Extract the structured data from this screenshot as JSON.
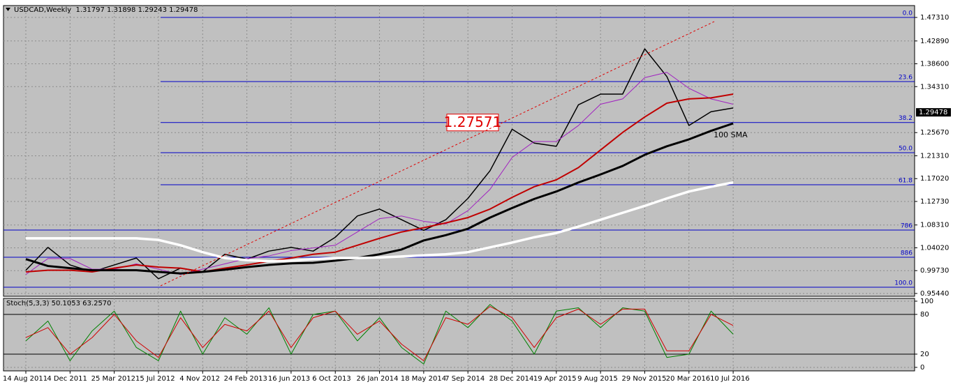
{
  "chart_data": [
    {
      "type": "line",
      "title": "USDCAD,Weekly  1.31797 1.31898 1.29243 1.29478",
      "ylim": [
        0.9491,
        1.4954
      ],
      "yticks": [
        {
          "value": 1.4731,
          "label": "1.47310"
        },
        {
          "value": 1.4289,
          "label": "1.42890"
        },
        {
          "value": 1.386,
          "label": "1.38600"
        },
        {
          "value": 1.3431,
          "label": "1.34310"
        },
        {
          "value": 1.2567,
          "label": "1.25670"
        },
        {
          "value": 1.2131,
          "label": "1.21310"
        },
        {
          "value": 1.1702,
          "label": "1.17020"
        },
        {
          "value": 1.1273,
          "label": "1.12730"
        },
        {
          "value": 1.0831,
          "label": "1.08310"
        },
        {
          "value": 1.0402,
          "label": "1.04020"
        },
        {
          "value": 0.9973,
          "label": "0.99730"
        },
        {
          "value": 0.9544,
          "label": "0.95440"
        }
      ],
      "grid": true,
      "last_price": 1.29478,
      "series": [
        {
          "color": "#000000",
          "width": 1.5,
          "values": [
            0.998,
            1.041,
            1.008,
            0.995,
            1.008,
            1.021,
            0.982,
            1.002,
            0.995,
            1.028,
            1.019,
            1.034,
            1.041,
            1.034,
            1.06,
            1.1,
            1.113,
            1.093,
            1.073,
            1.093,
            1.133,
            1.185,
            1.263,
            1.237,
            1.231,
            1.309,
            1.329,
            1.329,
            1.414,
            1.362,
            1.27,
            1.296,
            1.303
          ]
        },
        {
          "color": "#a020c0",
          "width": 1,
          "values": [
            0.99,
            1.02,
            1.02,
            1.0,
            1.0,
            1.01,
            1.0,
            0.99,
            1.0,
            1.01,
            1.02,
            1.025,
            1.035,
            1.04,
            1.045,
            1.07,
            1.095,
            1.1,
            1.09,
            1.085,
            1.11,
            1.15,
            1.21,
            1.24,
            1.24,
            1.27,
            1.31,
            1.32,
            1.36,
            1.37,
            1.34,
            1.32,
            1.31
          ]
        },
        {
          "color": "#c00000",
          "width": 2,
          "values": [
            0.995,
            0.998,
            0.998,
            0.995,
            1.002,
            1.008,
            1.004,
            1.002,
            0.995,
            1.002,
            1.008,
            1.015,
            1.021,
            1.028,
            1.032,
            1.045,
            1.058,
            1.07,
            1.078,
            1.087,
            1.097,
            1.113,
            1.135,
            1.155,
            1.168,
            1.191,
            1.224,
            1.257,
            1.286,
            1.312,
            1.32,
            1.322,
            1.329
          ]
        },
        {
          "name": "100 SMA",
          "color": "#000000",
          "width": 3,
          "values": [
            1.019,
            1.006,
            1.002,
            0.998,
            0.998,
            0.998,
            0.995,
            0.992,
            0.995,
            0.999,
            1.004,
            1.008,
            1.011,
            1.012,
            1.016,
            1.021,
            1.028,
            1.037,
            1.054,
            1.064,
            1.076,
            1.097,
            1.115,
            1.132,
            1.146,
            1.163,
            1.178,
            1.194,
            1.215,
            1.231,
            1.244,
            1.26,
            1.274
          ]
        },
        {
          "color": "#ffffff",
          "width": 3.5,
          "values": [
            1.058,
            1.058,
            1.058,
            1.058,
            1.058,
            1.058,
            1.055,
            1.045,
            1.032,
            1.021,
            1.017,
            1.015,
            1.016,
            1.019,
            1.021,
            1.021,
            1.022,
            1.024,
            1.026,
            1.028,
            1.032,
            1.041,
            1.05,
            1.06,
            1.068,
            1.08,
            1.093,
            1.106,
            1.119,
            1.133,
            1.146,
            1.155,
            1.163
          ]
        }
      ],
      "fib_color": "#0000c8",
      "fib_levels": [
        {
          "label": "0.0",
          "value": 1.4731
        },
        {
          "label": "23.6",
          "value": 1.3526
        },
        {
          "label": "38.2",
          "value": 1.27571,
          "boxed": true
        },
        {
          "label": "50.0",
          "value": 1.219
        },
        {
          "label": "61.8",
          "value": 1.1587
        },
        {
          "label": "786",
          "value": 1.0736
        },
        {
          "label": "886",
          "value": 1.0225
        },
        {
          "label": "100.0",
          "value": 0.9662
        }
      ]
    },
    {
      "type": "line",
      "title": "Stoch(5,3,3) 50.1053 63.2570",
      "categories": [
        "14 Aug 2011",
        null,
        "4 Dec 2011",
        null,
        "25 Mar 2012",
        null,
        "15 Jul 2012",
        null,
        "4 Nov 2012",
        null,
        "24 Feb 2013",
        null,
        "16 Jun 2013",
        null,
        "6 Oct 2013",
        null,
        "26 Jan 2014",
        null,
        "18 May 2014",
        null,
        "7 Sep 2014",
        null,
        "28 Dec 2014",
        null,
        "19 Apr 2015",
        null,
        "9 Aug 2015",
        null,
        "29 Nov 2015",
        null,
        "20 Mar 2016",
        null,
        "10 Jul 2016"
      ],
      "ylim": [
        -5.3,
        104.2
      ],
      "yticks": [
        100,
        80,
        20,
        0
      ],
      "levels": [
        80,
        20
      ],
      "series": [
        {
          "color": "#008000",
          "width": 1,
          "values": [
            40,
            70,
            10,
            55,
            85,
            30,
            10,
            85,
            20,
            75,
            50,
            90,
            20,
            80,
            85,
            40,
            75,
            30,
            5,
            85,
            60,
            95,
            70,
            20,
            85,
            90,
            60,
            90,
            85,
            15,
            20,
            85,
            50.1053
          ]
        },
        {
          "color": "#d00000",
          "width": 1,
          "values": [
            45,
            60,
            20,
            45,
            80,
            40,
            15,
            75,
            30,
            65,
            55,
            85,
            30,
            75,
            85,
            50,
            70,
            35,
            10,
            75,
            65,
            92,
            75,
            30,
            75,
            88,
            65,
            88,
            88,
            25,
            25,
            80,
            63.257
          ]
        }
      ]
    }
  ]
}
